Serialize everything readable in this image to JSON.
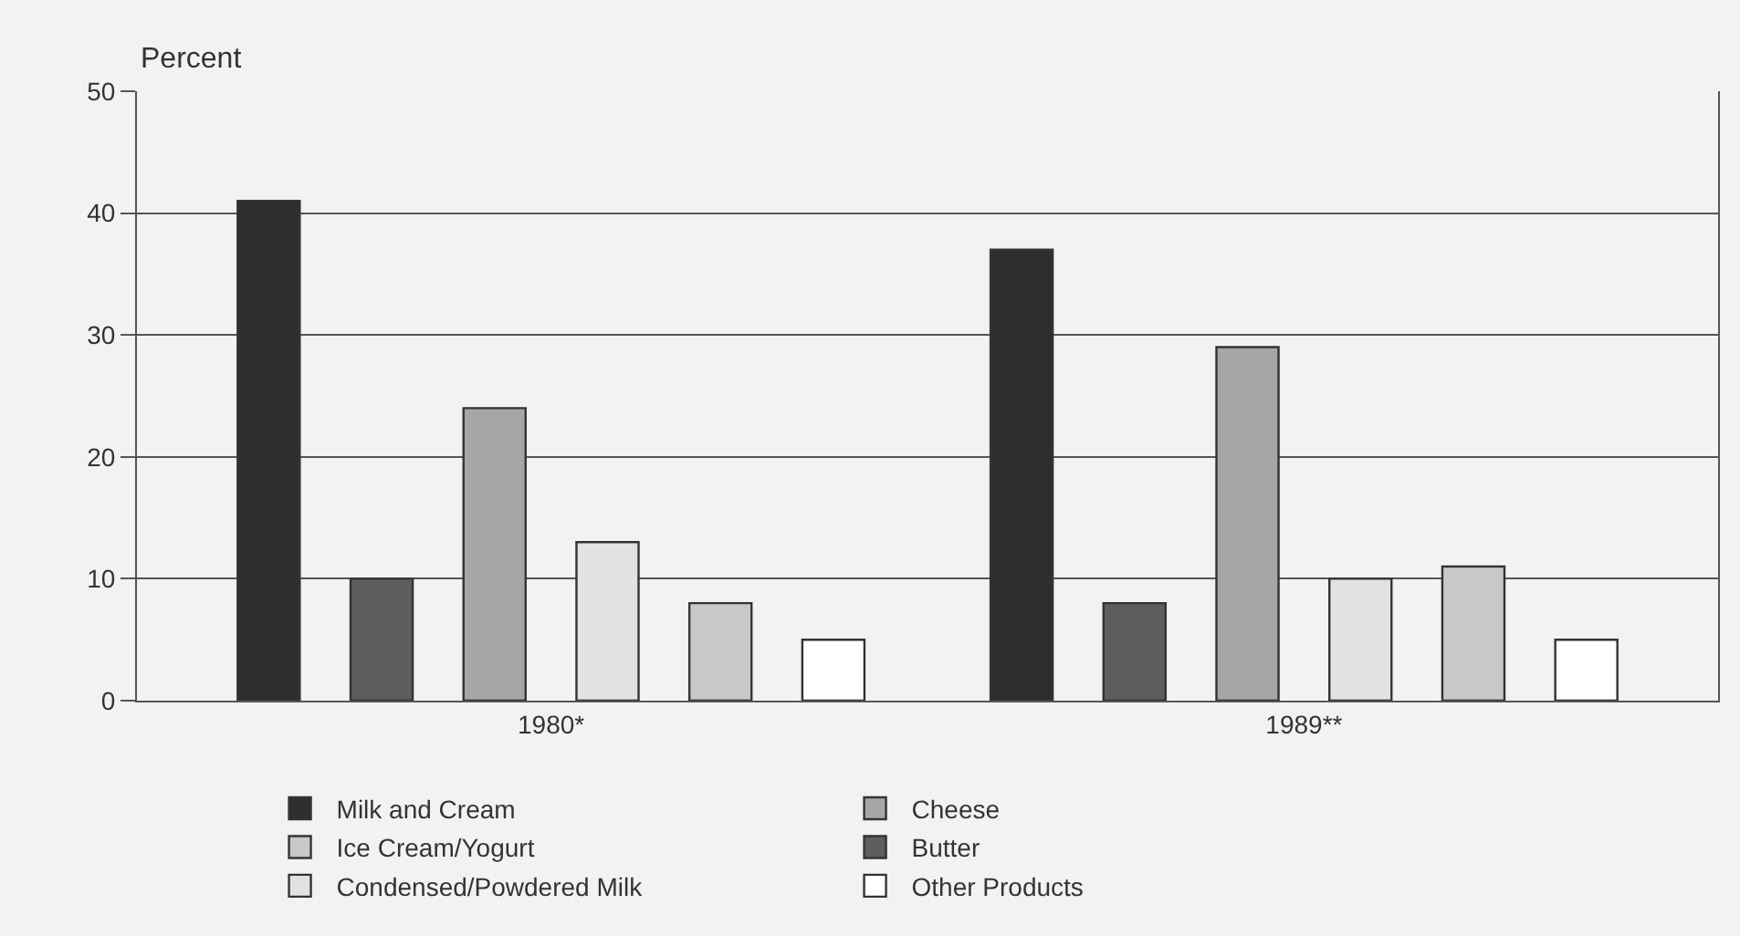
{
  "chart_data": {
    "type": "bar",
    "ylabel": "Percent",
    "categories": [
      "1980*",
      "1989**"
    ],
    "series": [
      {
        "name": "Milk and Cream",
        "color": "#2e2e2e",
        "values": [
          41,
          37
        ]
      },
      {
        "name": "Butter",
        "color": "#5e5e5e",
        "values": [
          10,
          8
        ]
      },
      {
        "name": "Cheese",
        "color": "#a6a6a6",
        "values": [
          24,
          29
        ]
      },
      {
        "name": "Condensed/Powdered Milk",
        "color": "#e2e2e2",
        "values": [
          13,
          10
        ]
      },
      {
        "name": "Ice Cream/Yogurt",
        "color": "#c8c8c8",
        "values": [
          8,
          11
        ]
      },
      {
        "name": "Other Products",
        "color": "#ffffff",
        "values": [
          5,
          5
        ]
      }
    ],
    "ylim": [
      0,
      50
    ],
    "yticks": [
      0,
      10,
      20,
      30,
      40,
      50
    ],
    "grid": "y",
    "legend": "bottom"
  }
}
